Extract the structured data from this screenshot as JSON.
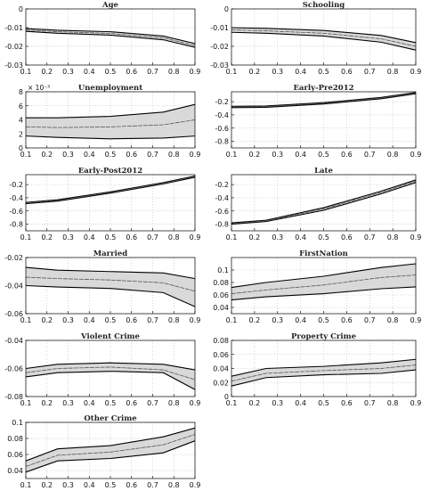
{
  "chart_data": [
    {
      "type": "area",
      "title": "Age",
      "x": [
        0.1,
        0.25,
        0.5,
        0.75,
        0.9
      ],
      "median": [
        -0.0113,
        -0.0122,
        -0.0131,
        -0.0155,
        -0.0195
      ],
      "lower": [
        -0.012,
        -0.013,
        -0.014,
        -0.0165,
        -0.0205
      ],
      "upper": [
        -0.0105,
        -0.0114,
        -0.0122,
        -0.0145,
        -0.0185
      ],
      "ylim": [
        -0.03,
        0
      ],
      "yticks": [
        "0",
        "-0.01",
        "-0.02",
        "-0.03"
      ],
      "xticks": [
        "0.1",
        "0.2",
        "0.3",
        "0.4",
        "0.5",
        "0.6",
        "0.7",
        "0.8",
        "0.9"
      ],
      "grid": true
    },
    {
      "type": "area",
      "title": "Schooling",
      "x": [
        0.1,
        0.25,
        0.5,
        0.75,
        0.9
      ],
      "median": [
        -0.0112,
        -0.0117,
        -0.013,
        -0.016,
        -0.02
      ],
      "lower": [
        -0.0125,
        -0.013,
        -0.0145,
        -0.0178,
        -0.022
      ],
      "upper": [
        -0.01,
        -0.0104,
        -0.0115,
        -0.0142,
        -0.018
      ],
      "ylim": [
        -0.03,
        0
      ],
      "yticks": [
        "0",
        "-0.01",
        "-0.02",
        "-0.03"
      ],
      "xticks": [
        "0.1",
        "0.2",
        "0.3",
        "0.4",
        "0.5",
        "0.6",
        "0.7",
        "0.8",
        "0.9"
      ],
      "grid": true
    },
    {
      "type": "area",
      "title": "Unemployment",
      "multiplier": "× 10⁻³",
      "x": [
        0.1,
        0.25,
        0.5,
        0.75,
        0.9
      ],
      "median": [
        3.0,
        2.9,
        3.0,
        3.3,
        4.0
      ],
      "lower": [
        1.7,
        1.5,
        1.3,
        1.4,
        1.7
      ],
      "upper": [
        4.3,
        4.3,
        4.5,
        5.1,
        6.2
      ],
      "ylim": [
        0,
        8
      ],
      "yticks": [
        "8",
        "6",
        "4",
        "2",
        "0"
      ],
      "xticks": [
        "0.1",
        "0.2",
        "0.3",
        "0.4",
        "0.5",
        "0.6",
        "0.7",
        "0.8",
        "0.9"
      ],
      "grid": true
    },
    {
      "type": "area",
      "title": "Early-Pre2012",
      "x": [
        0.1,
        0.25,
        0.5,
        0.75,
        0.9
      ],
      "median": [
        -0.28,
        -0.275,
        -0.225,
        -0.145,
        -0.07
      ],
      "lower": [
        -0.29,
        -0.285,
        -0.235,
        -0.155,
        -0.08
      ],
      "upper": [
        -0.27,
        -0.265,
        -0.215,
        -0.135,
        -0.06
      ],
      "ylim": [
        -0.9,
        -0.05
      ],
      "yticks": [
        "-0.2",
        "-0.4",
        "-0.6",
        "-0.8"
      ],
      "xticks": [
        "0.1",
        "0.2",
        "0.3",
        "0.4",
        "0.5",
        "0.6",
        "0.7",
        "0.8",
        "0.9"
      ],
      "grid": true
    },
    {
      "type": "area",
      "title": "Early-Post2012",
      "x": [
        0.1,
        0.25,
        0.5,
        0.75,
        0.9
      ],
      "median": [
        -0.48,
        -0.44,
        -0.32,
        -0.18,
        -0.08
      ],
      "lower": [
        -0.49,
        -0.45,
        -0.33,
        -0.19,
        -0.09
      ],
      "upper": [
        -0.47,
        -0.43,
        -0.31,
        -0.17,
        -0.07
      ],
      "ylim": [
        -0.9,
        -0.05
      ],
      "yticks": [
        "-0.2",
        "-0.4",
        "-0.6",
        "-0.8"
      ],
      "xticks": [
        "0.1",
        "0.2",
        "0.3",
        "0.4",
        "0.5",
        "0.6",
        "0.7",
        "0.8",
        "0.9"
      ],
      "grid": true
    },
    {
      "type": "area",
      "title": "Late",
      "x": [
        0.1,
        0.25,
        0.5,
        0.75,
        0.9
      ],
      "median": [
        -0.79,
        -0.75,
        -0.57,
        -0.32,
        -0.15
      ],
      "lower": [
        -0.8,
        -0.76,
        -0.59,
        -0.34,
        -0.17
      ],
      "upper": [
        -0.78,
        -0.74,
        -0.55,
        -0.3,
        -0.13
      ],
      "ylim": [
        -0.9,
        -0.05
      ],
      "yticks": [
        "-0.2",
        "-0.4",
        "-0.6",
        "-0.8"
      ],
      "xticks": [
        "0.1",
        "0.2",
        "0.3",
        "0.4",
        "0.5",
        "0.6",
        "0.7",
        "0.8",
        "0.9"
      ],
      "grid": true
    },
    {
      "type": "area",
      "title": "Married",
      "x": [
        0.1,
        0.25,
        0.5,
        0.75,
        0.9
      ],
      "median": [
        -0.034,
        -0.035,
        -0.036,
        -0.038,
        -0.044
      ],
      "lower": [
        -0.04,
        -0.041,
        -0.042,
        -0.045,
        -0.055
      ],
      "upper": [
        -0.027,
        -0.029,
        -0.03,
        -0.031,
        -0.035
      ],
      "ylim": [
        -0.06,
        -0.02
      ],
      "yticks": [
        "-0.02",
        "-0.04",
        "-0.06"
      ],
      "xticks": [
        "0.1",
        "0.2",
        "0.3",
        "0.4",
        "0.5",
        "0.6",
        "0.7",
        "0.8",
        "0.9"
      ],
      "grid": true
    },
    {
      "type": "area",
      "title": "FirstNation",
      "x": [
        0.1,
        0.25,
        0.5,
        0.75,
        0.9
      ],
      "median": [
        0.062,
        0.068,
        0.076,
        0.088,
        0.092
      ],
      "lower": [
        0.052,
        0.057,
        0.062,
        0.07,
        0.073
      ],
      "upper": [
        0.072,
        0.08,
        0.09,
        0.104,
        0.11
      ],
      "ylim": [
        0.03,
        0.12
      ],
      "yticks": [
        "0.1",
        "0.08",
        "0.06",
        "0.04"
      ],
      "xticks": [
        "0.1",
        "0.2",
        "0.3",
        "0.4",
        "0.5",
        "0.6",
        "0.7",
        "0.8",
        "0.9"
      ],
      "grid": true
    },
    {
      "type": "area",
      "title": "Violent Crime",
      "x": [
        0.1,
        0.25,
        0.5,
        0.75,
        0.9
      ],
      "median": [
        -0.063,
        -0.06,
        -0.059,
        -0.061,
        -0.068
      ],
      "lower": [
        -0.066,
        -0.063,
        -0.062,
        -0.063,
        -0.075
      ],
      "upper": [
        -0.06,
        -0.057,
        -0.056,
        -0.057,
        -0.061
      ],
      "ylim": [
        -0.08,
        -0.04
      ],
      "yticks": [
        "-0.04",
        "-0.06",
        "-0.08"
      ],
      "xticks": [
        "0.1",
        "0.2",
        "0.3",
        "0.4",
        "0.5",
        "0.6",
        "0.7",
        "0.8",
        "0.9"
      ],
      "grid": true
    },
    {
      "type": "area",
      "title": "Property Crime",
      "x": [
        0.1,
        0.25,
        0.5,
        0.75,
        0.9
      ],
      "median": [
        0.022,
        0.033,
        0.037,
        0.04,
        0.045
      ],
      "lower": [
        0.015,
        0.027,
        0.031,
        0.033,
        0.038
      ],
      "upper": [
        0.029,
        0.04,
        0.043,
        0.048,
        0.053
      ],
      "ylim": [
        0,
        0.08
      ],
      "yticks": [
        "0.08",
        "0.06",
        "0.04",
        "0.02",
        "0"
      ],
      "xticks": [
        "0.1",
        "0.2",
        "0.3",
        "0.4",
        "0.5",
        "0.6",
        "0.7",
        "0.8",
        "0.9"
      ],
      "grid": true
    },
    {
      "type": "area",
      "title": "Other Crime",
      "x": [
        0.1,
        0.25,
        0.5,
        0.75,
        0.9
      ],
      "median": [
        0.045,
        0.059,
        0.063,
        0.072,
        0.085
      ],
      "lower": [
        0.038,
        0.052,
        0.055,
        0.062,
        0.077
      ],
      "upper": [
        0.052,
        0.067,
        0.071,
        0.082,
        0.093
      ],
      "ylim": [
        0.03,
        0.1
      ],
      "yticks": [
        "0.1",
        "0.08",
        "0.06",
        "0.04"
      ],
      "xticks": [
        "0.1",
        "0.2",
        "0.3",
        "0.4",
        "0.5",
        "0.6",
        "0.7",
        "0.8",
        "0.9"
      ],
      "grid": true
    }
  ],
  "style": {
    "band_fill": "#d9d9d9",
    "line_color": "#000000",
    "median_color": "#555555",
    "grid_color": "#b0b0b0"
  }
}
